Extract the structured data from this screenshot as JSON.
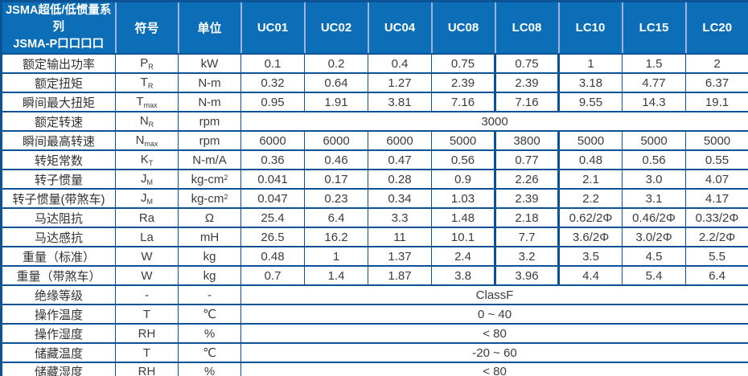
{
  "table": {
    "title_line1": "JSMA超低/低惯量系列",
    "title_line2": "JSMA-P口口口口",
    "symbol_header": "符号",
    "unit_header": "单位",
    "models": [
      "UC01",
      "UC02",
      "UC04",
      "UC08",
      "LC08",
      "LC10",
      "LC15",
      "LC20"
    ],
    "highlight_model": "LC08",
    "colors": {
      "header_bg": "#0D6EB8",
      "border": "#0B5394",
      "header_divider": "#9DB3DC",
      "header_text": "#FFFFFF",
      "body_text": "#3C3C3C"
    },
    "rows": [
      {
        "label": "额定输出功率",
        "symbol": {
          "base": "P",
          "sub": "R"
        },
        "unit": {
          "base": "kW",
          "sup": ""
        },
        "values": [
          "0.1",
          "0.2",
          "0.4",
          "0.75",
          "0.75",
          "1",
          "1.5",
          "2"
        ]
      },
      {
        "label": "额定扭矩",
        "symbol": {
          "base": "T",
          "sub": "R"
        },
        "unit": {
          "base": "N-m",
          "sup": ""
        },
        "values": [
          "0.32",
          "0.64",
          "1.27",
          "2.39",
          "2.39",
          "3.18",
          "4.77",
          "6.37"
        ]
      },
      {
        "label": "瞬间最大扭矩",
        "symbol": {
          "base": "T",
          "sub": "max"
        },
        "unit": {
          "base": "N-m",
          "sup": ""
        },
        "values": [
          "0.95",
          "1.91",
          "3.81",
          "7.16",
          "7.16",
          "9.55",
          "14.3",
          "19.1"
        ]
      },
      {
        "label": "额定转速",
        "symbol": {
          "base": "N",
          "sub": "R"
        },
        "unit": {
          "base": "rpm",
          "sup": ""
        },
        "merged": "3000"
      },
      {
        "label": "瞬间最高转速",
        "symbol": {
          "base": "N",
          "sub": "max"
        },
        "unit": {
          "base": "rpm",
          "sup": ""
        },
        "values": [
          "6000",
          "6000",
          "6000",
          "5000",
          "3800",
          "5000",
          "5000",
          "5000"
        ]
      },
      {
        "label": "转矩常数",
        "symbol": {
          "base": "K",
          "sub": "T"
        },
        "unit": {
          "base": "N-m/A",
          "sup": ""
        },
        "values": [
          "0.36",
          "0.46",
          "0.47",
          "0.56",
          "0.77",
          "0.48",
          "0.56",
          "0.55"
        ]
      },
      {
        "label": "转子惯量",
        "symbol": {
          "base": "J",
          "sub": "M"
        },
        "unit": {
          "base": "kg-cm",
          "sup": "2"
        },
        "values": [
          "0.041",
          "0.17",
          "0.28",
          "0.9",
          "2.26",
          "2.1",
          "3.0",
          "4.07"
        ]
      },
      {
        "label": "转子惯量(带煞车)",
        "symbol": {
          "base": "J",
          "sub": "M"
        },
        "unit": {
          "base": "kg-cm",
          "sup": "2"
        },
        "values": [
          "0.047",
          "0.23",
          "0.34",
          "1.03",
          "2.39",
          "2.2",
          "3.1",
          "4.17"
        ]
      },
      {
        "label": "马达阻抗",
        "symbol": {
          "base": "Ra",
          "sub": ""
        },
        "unit": {
          "base": "Ω",
          "sup": ""
        },
        "values": [
          "25.4",
          "6.4",
          "3.3",
          "1.48",
          "2.18",
          "0.62/2Φ",
          "0.46/2Φ",
          "0.33/2Φ"
        ]
      },
      {
        "label": "马达感抗",
        "symbol": {
          "base": "La",
          "sub": ""
        },
        "unit": {
          "base": "mH",
          "sup": ""
        },
        "values": [
          "26.5",
          "16.2",
          "11",
          "10.1",
          "7.7",
          "3.6/2Φ",
          "3.0/2Φ",
          "2.2/2Φ"
        ]
      },
      {
        "label": "重量（标准）",
        "symbol": {
          "base": "W",
          "sub": ""
        },
        "unit": {
          "base": "kg",
          "sup": ""
        },
        "values": [
          "0.48",
          "1",
          "1.37",
          "2.4",
          "3.2",
          "3.5",
          "4.5",
          "5.5"
        ]
      },
      {
        "label": "重量（带煞车）",
        "symbol": {
          "base": "W",
          "sub": ""
        },
        "unit": {
          "base": "kg",
          "sup": ""
        },
        "values": [
          "0.7",
          "1.4",
          "1.87",
          "3.8",
          "3.96",
          "4.4",
          "5.4",
          "6.4"
        ]
      },
      {
        "label": "绝缘等级",
        "symbol": {
          "base": "-",
          "sub": ""
        },
        "unit": {
          "base": "-",
          "sup": ""
        },
        "merged": "ClassF"
      },
      {
        "label": "操作温度",
        "symbol": {
          "base": "T",
          "sub": ""
        },
        "unit": {
          "base": "℃",
          "sup": ""
        },
        "merged": "0 ~ 40"
      },
      {
        "label": "操作湿度",
        "symbol": {
          "base": "RH",
          "sub": ""
        },
        "unit": {
          "base": "%",
          "sup": ""
        },
        "merged": "< 80"
      },
      {
        "label": "储藏温度",
        "symbol": {
          "base": "T",
          "sub": ""
        },
        "unit": {
          "base": "℃",
          "sup": ""
        },
        "merged": "-20 ~ 60"
      },
      {
        "label": "储藏湿度",
        "symbol": {
          "base": "RH",
          "sub": ""
        },
        "unit": {
          "base": "%",
          "sup": ""
        },
        "merged": "< 80"
      }
    ]
  }
}
